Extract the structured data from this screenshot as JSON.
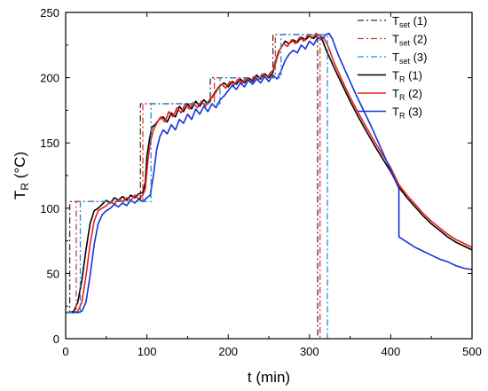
{
  "chart_data": {
    "type": "line",
    "xlabel": "t (min)",
    "ylabel_main": "T",
    "ylabel_sub": "R",
    "ylabel_unit": " (°C)",
    "xlim": [
      0,
      500
    ],
    "ylim": [
      0,
      250
    ],
    "x_ticks": [
      0,
      100,
      200,
      300,
      400,
      500
    ],
    "y_ticks": [
      0,
      50,
      100,
      150,
      200,
      250
    ],
    "grid": false,
    "legend_position": "top-right",
    "series": [
      {
        "name": "Tset (1)",
        "legend_main": "T",
        "legend_sub": "set",
        "legend_suffix": " (1)",
        "color": "#333333",
        "style": "dashdot",
        "points": [
          [
            0,
            20
          ],
          [
            5,
            20
          ],
          [
            5,
            105
          ],
          [
            92,
            105
          ],
          [
            92,
            180
          ],
          [
            178,
            180
          ],
          [
            178,
            200
          ],
          [
            255,
            200
          ],
          [
            255,
            233
          ],
          [
            310,
            233
          ],
          [
            310,
            0
          ]
        ]
      },
      {
        "name": "Tset (2)",
        "legend_main": "T",
        "legend_sub": "set",
        "legend_suffix": " (2)",
        "color": "#e8382c",
        "style": "dashdot",
        "points": [
          [
            0,
            20
          ],
          [
            13,
            20
          ],
          [
            13,
            105
          ],
          [
            95,
            105
          ],
          [
            95,
            180
          ],
          [
            183,
            180
          ],
          [
            183,
            200
          ],
          [
            258,
            200
          ],
          [
            258,
            233
          ],
          [
            313,
            233
          ],
          [
            313,
            0
          ]
        ]
      },
      {
        "name": "Tset (3)",
        "legend_main": "T",
        "legend_sub": "set",
        "legend_suffix": " (3)",
        "color": "#1f8fd8",
        "style": "dashdot",
        "points": [
          [
            0,
            20
          ],
          [
            18,
            20
          ],
          [
            18,
            105
          ],
          [
            105,
            105
          ],
          [
            105,
            180
          ],
          [
            190,
            180
          ],
          [
            190,
            200
          ],
          [
            265,
            200
          ],
          [
            265,
            233
          ],
          [
            322,
            233
          ],
          [
            322,
            0
          ]
        ]
      },
      {
        "name": "TR (1)",
        "legend_main": "T",
        "legend_sub": "R",
        "legend_suffix": " (1)",
        "color": "#000000",
        "style": "solid",
        "points": [
          [
            0,
            20
          ],
          [
            5,
            20
          ],
          [
            10,
            21
          ],
          [
            15,
            28
          ],
          [
            20,
            45
          ],
          [
            25,
            68
          ],
          [
            30,
            88
          ],
          [
            35,
            98
          ],
          [
            40,
            100
          ],
          [
            45,
            103
          ],
          [
            50,
            106
          ],
          [
            55,
            104
          ],
          [
            60,
            108
          ],
          [
            65,
            106
          ],
          [
            70,
            109
          ],
          [
            75,
            106
          ],
          [
            80,
            110
          ],
          [
            85,
            108
          ],
          [
            90,
            111
          ],
          [
            95,
            112
          ],
          [
            98,
            120
          ],
          [
            100,
            140
          ],
          [
            103,
            152
          ],
          [
            106,
            162
          ],
          [
            110,
            164
          ],
          [
            115,
            168
          ],
          [
            120,
            170
          ],
          [
            125,
            166
          ],
          [
            130,
            173
          ],
          [
            135,
            170
          ],
          [
            140,
            178
          ],
          [
            145,
            174
          ],
          [
            150,
            180
          ],
          [
            155,
            176
          ],
          [
            160,
            182
          ],
          [
            165,
            178
          ],
          [
            170,
            183
          ],
          [
            175,
            180
          ],
          [
            180,
            185
          ],
          [
            185,
            190
          ],
          [
            190,
            194
          ],
          [
            195,
            196
          ],
          [
            200,
            193
          ],
          [
            205,
            197
          ],
          [
            210,
            195
          ],
          [
            215,
            199
          ],
          [
            220,
            196
          ],
          [
            225,
            200
          ],
          [
            230,
            197
          ],
          [
            235,
            202
          ],
          [
            240,
            199
          ],
          [
            245,
            203
          ],
          [
            250,
            200
          ],
          [
            255,
            204
          ],
          [
            258,
            212
          ],
          [
            262,
            220
          ],
          [
            266,
            224
          ],
          [
            270,
            228
          ],
          [
            275,
            226
          ],
          [
            280,
            229
          ],
          [
            285,
            227
          ],
          [
            290,
            231
          ],
          [
            295,
            229
          ],
          [
            300,
            232
          ],
          [
            305,
            230
          ],
          [
            310,
            233
          ],
          [
            314,
            232
          ],
          [
            320,
            222
          ],
          [
            330,
            208
          ],
          [
            340,
            195
          ],
          [
            350,
            182
          ],
          [
            360,
            170
          ],
          [
            370,
            159
          ],
          [
            380,
            148
          ],
          [
            390,
            138
          ],
          [
            400,
            128
          ],
          [
            410,
            116
          ],
          [
            420,
            108
          ],
          [
            430,
            101
          ],
          [
            440,
            94
          ],
          [
            450,
            88
          ],
          [
            460,
            83
          ],
          [
            470,
            78
          ],
          [
            480,
            74
          ],
          [
            490,
            71
          ],
          [
            500,
            68
          ]
        ]
      },
      {
        "name": "TR (2)",
        "legend_main": "T",
        "legend_sub": "R",
        "legend_suffix": " (2)",
        "color": "#e8201a",
        "style": "solid",
        "points": [
          [
            0,
            20
          ],
          [
            10,
            20
          ],
          [
            15,
            21
          ],
          [
            20,
            28
          ],
          [
            25,
            48
          ],
          [
            30,
            72
          ],
          [
            35,
            90
          ],
          [
            40,
            98
          ],
          [
            45,
            100
          ],
          [
            50,
            102
          ],
          [
            55,
            105
          ],
          [
            60,
            103
          ],
          [
            65,
            107
          ],
          [
            70,
            105
          ],
          [
            75,
            108
          ],
          [
            80,
            106
          ],
          [
            85,
            110
          ],
          [
            90,
            107
          ],
          [
            95,
            110
          ],
          [
            98,
            115
          ],
          [
            101,
            135
          ],
          [
            104,
            150
          ],
          [
            108,
            160
          ],
          [
            112,
            165
          ],
          [
            117,
            170
          ],
          [
            122,
            166
          ],
          [
            127,
            174
          ],
          [
            132,
            170
          ],
          [
            137,
            177
          ],
          [
            142,
            173
          ],
          [
            147,
            180
          ],
          [
            152,
            176
          ],
          [
            157,
            181
          ],
          [
            162,
            177
          ],
          [
            167,
            182
          ],
          [
            172,
            178
          ],
          [
            177,
            183
          ],
          [
            182,
            186
          ],
          [
            187,
            191
          ],
          [
            192,
            195
          ],
          [
            197,
            192
          ],
          [
            202,
            197
          ],
          [
            207,
            194
          ],
          [
            212,
            199
          ],
          [
            217,
            196
          ],
          [
            222,
            200
          ],
          [
            227,
            197
          ],
          [
            232,
            201
          ],
          [
            237,
            198
          ],
          [
            242,
            203
          ],
          [
            247,
            199
          ],
          [
            252,
            204
          ],
          [
            256,
            206
          ],
          [
            260,
            215
          ],
          [
            264,
            222
          ],
          [
            268,
            226
          ],
          [
            273,
            224
          ],
          [
            278,
            229
          ],
          [
            283,
            226
          ],
          [
            288,
            231
          ],
          [
            293,
            228
          ],
          [
            298,
            233
          ],
          [
            303,
            230
          ],
          [
            308,
            234
          ],
          [
            313,
            232
          ],
          [
            318,
            230
          ],
          [
            323,
            224
          ],
          [
            330,
            212
          ],
          [
            340,
            198
          ],
          [
            350,
            185
          ],
          [
            360,
            173
          ],
          [
            370,
            162
          ],
          [
            380,
            151
          ],
          [
            390,
            141
          ],
          [
            400,
            131
          ],
          [
            410,
            118
          ],
          [
            420,
            110
          ],
          [
            430,
            103
          ],
          [
            440,
            96
          ],
          [
            450,
            90
          ],
          [
            460,
            85
          ],
          [
            470,
            80
          ],
          [
            480,
            76
          ],
          [
            490,
            73
          ],
          [
            500,
            70
          ]
        ]
      },
      {
        "name": "TR (3)",
        "legend_main": "T",
        "legend_sub": "R",
        "legend_suffix": " (3)",
        "color": "#1530e0",
        "style": "solid",
        "points": [
          [
            0,
            20
          ],
          [
            15,
            20
          ],
          [
            20,
            21
          ],
          [
            25,
            28
          ],
          [
            30,
            48
          ],
          [
            35,
            72
          ],
          [
            40,
            88
          ],
          [
            45,
            95
          ],
          [
            50,
            98
          ],
          [
            55,
            100
          ],
          [
            60,
            103
          ],
          [
            65,
            101
          ],
          [
            70,
            104
          ],
          [
            75,
            102
          ],
          [
            80,
            106
          ],
          [
            85,
            104
          ],
          [
            90,
            107
          ],
          [
            95,
            105
          ],
          [
            100,
            108
          ],
          [
            104,
            110
          ],
          [
            108,
            125
          ],
          [
            112,
            145
          ],
          [
            116,
            155
          ],
          [
            120,
            160
          ],
          [
            125,
            157
          ],
          [
            130,
            164
          ],
          [
            135,
            160
          ],
          [
            140,
            168
          ],
          [
            145,
            165
          ],
          [
            150,
            172
          ],
          [
            155,
            168
          ],
          [
            160,
            176
          ],
          [
            165,
            172
          ],
          [
            170,
            178
          ],
          [
            175,
            174
          ],
          [
            180,
            180
          ],
          [
            185,
            177
          ],
          [
            190,
            183
          ],
          [
            195,
            186
          ],
          [
            200,
            190
          ],
          [
            205,
            194
          ],
          [
            210,
            191
          ],
          [
            215,
            196
          ],
          [
            220,
            193
          ],
          [
            225,
            198
          ],
          [
            230,
            195
          ],
          [
            235,
            199
          ],
          [
            240,
            196
          ],
          [
            245,
            201
          ],
          [
            250,
            197
          ],
          [
            255,
            202
          ],
          [
            260,
            199
          ],
          [
            265,
            205
          ],
          [
            270,
            213
          ],
          [
            275,
            218
          ],
          [
            280,
            221
          ],
          [
            285,
            219
          ],
          [
            290,
            225
          ],
          [
            295,
            222
          ],
          [
            300,
            228
          ],
          [
            305,
            225
          ],
          [
            310,
            231
          ],
          [
            315,
            229
          ],
          [
            320,
            233
          ],
          [
            324,
            234
          ],
          [
            328,
            230
          ],
          [
            335,
            218
          ],
          [
            345,
            204
          ],
          [
            355,
            190
          ],
          [
            365,
            177
          ],
          [
            375,
            164
          ],
          [
            385,
            150
          ],
          [
            395,
            136
          ],
          [
            405,
            122
          ],
          [
            410,
            115
          ],
          [
            410,
            78
          ],
          [
            420,
            74
          ],
          [
            430,
            70
          ],
          [
            440,
            67
          ],
          [
            450,
            64
          ],
          [
            460,
            61
          ],
          [
            470,
            59
          ],
          [
            480,
            56
          ],
          [
            490,
            54
          ],
          [
            500,
            53
          ]
        ]
      }
    ]
  }
}
